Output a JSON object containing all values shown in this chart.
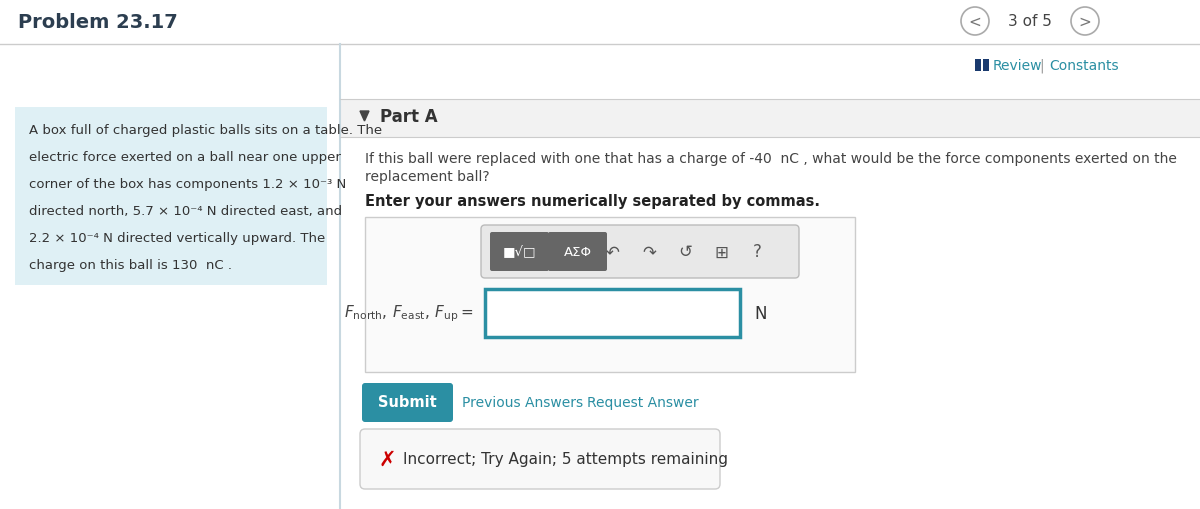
{
  "title": "Problem 23.17",
  "nav_text": "3 of 5",
  "review_text": "Review",
  "constants_text": "Constants",
  "part_label": "Part A",
  "context_text_lines": [
    "A box full of charged plastic balls sits on a table. The",
    "electric force exerted on a ball near one upper",
    "corner of the box has components 1.2 × 10⁻³ N",
    "directed north, 5.7 × 10⁻⁴ N directed east, and",
    "2.2 × 10⁻⁴ N directed vertically upward. The",
    "charge on this ball is 130  nC ."
  ],
  "question_text_line1": "If this ball were replaced with one that has a charge of -40  nC , what would be the force components exerted on the",
  "question_text_line2": "replacement ball?",
  "instruction_text": "Enter your answers numerically separated by commas.",
  "unit_label": "N",
  "submit_text": "Submit",
  "prev_answers_text": "Previous Answers",
  "request_answer_text": "Request Answer",
  "incorrect_text": "Incorrect; Try Again; 5 attempts remaining",
  "bg_color": "#ffffff",
  "context_bg_color": "#dff0f5",
  "part_header_bg": "#f2f2f2",
  "submit_btn_color": "#2b8fa3",
  "input_border_color": "#2b8fa3",
  "incorrect_box_bg": "#f8f8f8",
  "incorrect_x_color": "#cc0000",
  "link_color": "#2b8fa3",
  "divider_color": "#cccccc",
  "title_color": "#2c3e50",
  "nav_circle_color": "#aaaaaa",
  "toolbar_bg": "#e4e4e4",
  "toolbar_btn_bg": "#666666",
  "review_icon_color": "#1a3a6e"
}
